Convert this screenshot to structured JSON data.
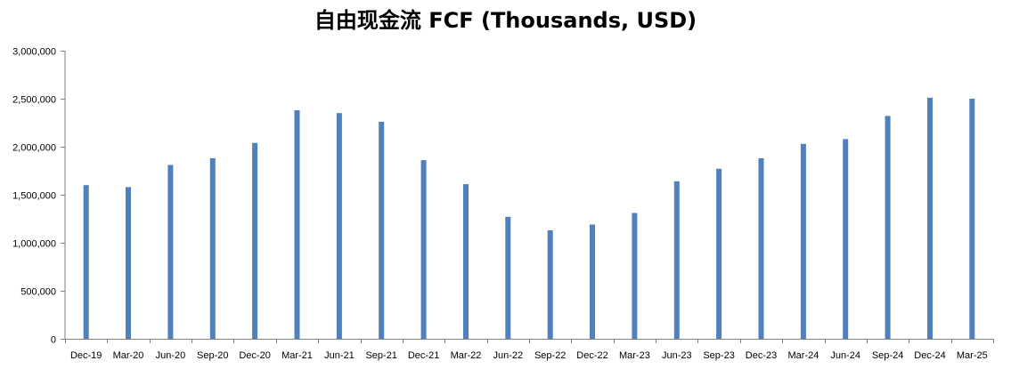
{
  "chart_data": {
    "type": "bar",
    "title": "自由现金流 FCF (Thousands, USD)",
    "xlabel": "",
    "ylabel": "",
    "ylim": [
      0,
      3000000
    ],
    "yticks": [
      0,
      500000,
      1000000,
      1500000,
      2000000,
      2500000,
      3000000
    ],
    "ytick_labels": [
      "0",
      "500,000",
      "1,000,000",
      "1,500,000",
      "2,000,000",
      "2,500,000",
      "3,000,000"
    ],
    "grid": false,
    "bar_color": "#4F81BD",
    "categories": [
      "Dec-19",
      "Mar-20",
      "Jun-20",
      "Sep-20",
      "Dec-20",
      "Mar-21",
      "Jun-21",
      "Sep-21",
      "Dec-21",
      "Mar-22",
      "Jun-22",
      "Sep-22",
      "Dec-22",
      "Mar-23",
      "Jun-23",
      "Sep-23",
      "Dec-23",
      "Mar-24",
      "Jun-24",
      "Sep-24",
      "Dec-24",
      "Mar-25"
    ],
    "values": [
      1600000,
      1580000,
      1810000,
      1880000,
      2040000,
      2380000,
      2350000,
      2260000,
      1860000,
      1610000,
      1270000,
      1130000,
      1190000,
      1310000,
      1640000,
      1770000,
      1880000,
      2030000,
      2080000,
      2320000,
      2510000,
      2500000
    ]
  }
}
